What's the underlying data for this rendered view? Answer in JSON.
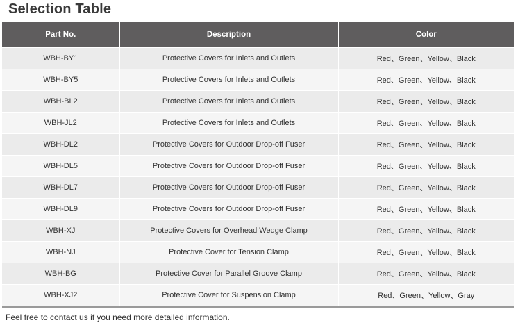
{
  "title": "Selection Table",
  "table": {
    "headers": [
      "Part No.",
      "Description",
      "Color"
    ],
    "rows": [
      [
        "WBH-BY1",
        "Protective Covers for Inlets and Outlets",
        "Red、Green、Yellow、Black"
      ],
      [
        "WBH-BY5",
        "Protective Covers for Inlets and Outlets",
        "Red、Green、Yellow、Black"
      ],
      [
        "WBH-BL2",
        "Protective Covers for Inlets and Outlets",
        "Red、Green、Yellow、Black"
      ],
      [
        "WBH-JL2",
        "Protective Covers for Inlets and Outlets",
        "Red、Green、Yellow、Black"
      ],
      [
        "WBH-DL2",
        "Protective Covers for Outdoor Drop-off Fuser",
        "Red、Green、Yellow、Black"
      ],
      [
        "WBH-DL5",
        "Protective Covers for Outdoor Drop-off Fuser",
        "Red、Green、Yellow、Black"
      ],
      [
        "WBH-DL7",
        "Protective Covers for Outdoor Drop-off Fuser",
        "Red、Green、Yellow、Black"
      ],
      [
        "WBH-DL9",
        "Protective Covers for Outdoor Drop-off Fuser",
        "Red、Green、Yellow、Black"
      ],
      [
        "WBH-XJ",
        "Protective Covers for Overhead Wedge Clamp",
        "Red、Green、Yellow、Black"
      ],
      [
        "WBH-NJ",
        "Protective Cover for Tension Clamp",
        "Red、Green、Yellow、Black"
      ],
      [
        "WBH-BG",
        "Protective Cover for Parallel Groove Clamp",
        "Red、Green、Yellow、Black"
      ],
      [
        "WBH-XJ2",
        "Protective Cover for Suspension Clamp",
        "Red、Green、Yellow、Gray"
      ]
    ]
  },
  "footer": "Feel free to contact us if you need more detailed information."
}
